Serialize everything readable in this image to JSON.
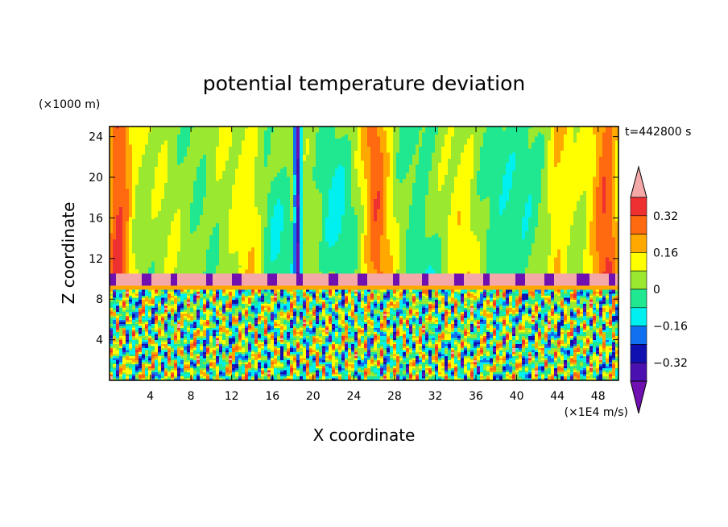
{
  "chart_data": {
    "type": "heatmap",
    "title": "potential temperature deviation",
    "xlabel": "X coordinate",
    "ylabel": "Z coordinate",
    "x_unit": "(×1E4 m/s)",
    "y_unit": "(×1000 m)",
    "time_label": "t=442800 s",
    "xlim": [
      0,
      50
    ],
    "ylim": [
      0,
      25
    ],
    "x_ticks": [
      4,
      8,
      12,
      16,
      20,
      24,
      28,
      32,
      36,
      40,
      44,
      48
    ],
    "y_ticks": [
      4,
      8,
      12,
      16,
      20,
      24
    ],
    "grid": false,
    "colorbar": {
      "placement": "right",
      "tick_labels": [
        "0.32",
        "0.16",
        "0",
        "−0.16",
        "−0.32"
      ],
      "tick_values": [
        0.32,
        0.16,
        0,
        -0.16,
        -0.32
      ],
      "levels_high_to_low": [
        {
          "color": "#f4a8a8",
          "range": "> 0.40"
        },
        {
          "color": "#ee3030",
          "range": "0.32 – 0.40"
        },
        {
          "color": "#ff6a10",
          "range": "0.24 – 0.32"
        },
        {
          "color": "#ffa800",
          "range": "0.16 – 0.24"
        },
        {
          "color": "#ffff00",
          "range": "0.08 – 0.16"
        },
        {
          "color": "#9ae830",
          "range": "0 – 0.08"
        },
        {
          "color": "#20e890",
          "range": "−0.08 – 0"
        },
        {
          "color": "#00f0f0",
          "range": "−0.16 – −0.08"
        },
        {
          "color": "#1070f0",
          "range": "−0.24 – −0.16"
        },
        {
          "color": "#1010b0",
          "range": "−0.32 – −0.24"
        },
        {
          "color": "#4a10b0",
          "range": "−0.40 – −0.32"
        },
        {
          "color": "#7010b0",
          "range": "< −0.40"
        }
      ]
    },
    "structure": {
      "upper_layer_z": [
        10.5,
        25
      ],
      "upper_layer_typical": "0 to 0.08, warmer (0.16–0.40) near x=0–3, 25–27, 46–50; cooler (−0.16 to 0) columns near x=12–24, 36–42",
      "inversion_layer_z": [
        9,
        10.5
      ],
      "inversion_layer_typical": "> 0.40 with embedded < −0.40 patches",
      "lower_layer_z": [
        0,
        9
      ],
      "lower_layer_typical": "turbulent mix of −0.40 to 0.40"
    }
  }
}
